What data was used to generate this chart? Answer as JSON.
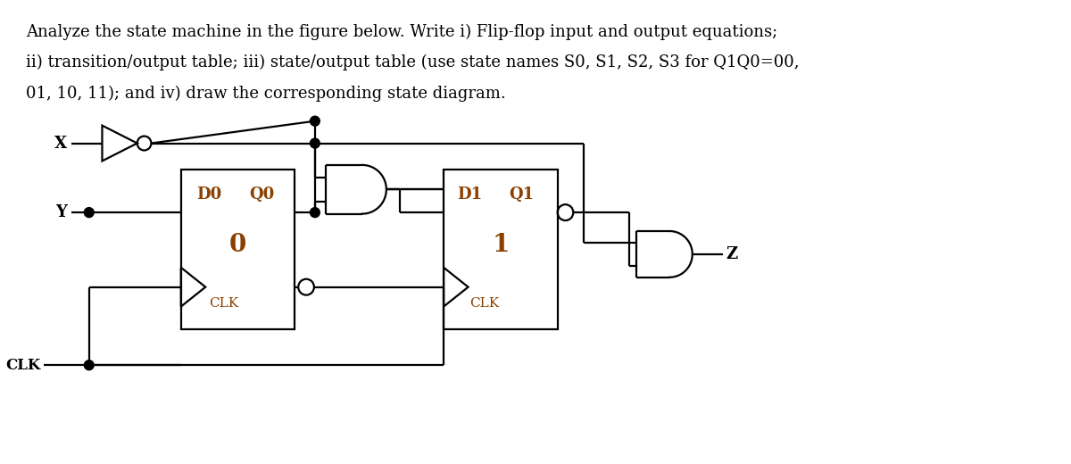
{
  "title_line1": "Analyze the state machine in the figure below. Write i) Flip-flop input and output equations;",
  "title_line2": "ii) transition/output table; iii) state/output table (use state names S0, S1, S2, S3 for Q1Q0=00,",
  "title_line3": "01, 10, 11); and iv) draw the corresponding state diagram.",
  "title_fontsize": 13.0,
  "bg_color": "#ffffff",
  "lc": "#000000",
  "tc": "#8B4000",
  "lw": 1.6,
  "figsize": [
    12.0,
    5.2
  ],
  "dpi": 100,
  "ff0_label_D": "D0",
  "ff0_label_Q": "Q0",
  "ff0_label_num": "0",
  "ff0_label_clk": "CLK",
  "ff1_label_D": "D1",
  "ff1_label_Q": "Q1",
  "ff1_label_num": "1",
  "ff1_label_clk": "CLK",
  "label_X": "X",
  "label_Y": "Y",
  "label_CLK": "CLK",
  "label_Z": "Z"
}
